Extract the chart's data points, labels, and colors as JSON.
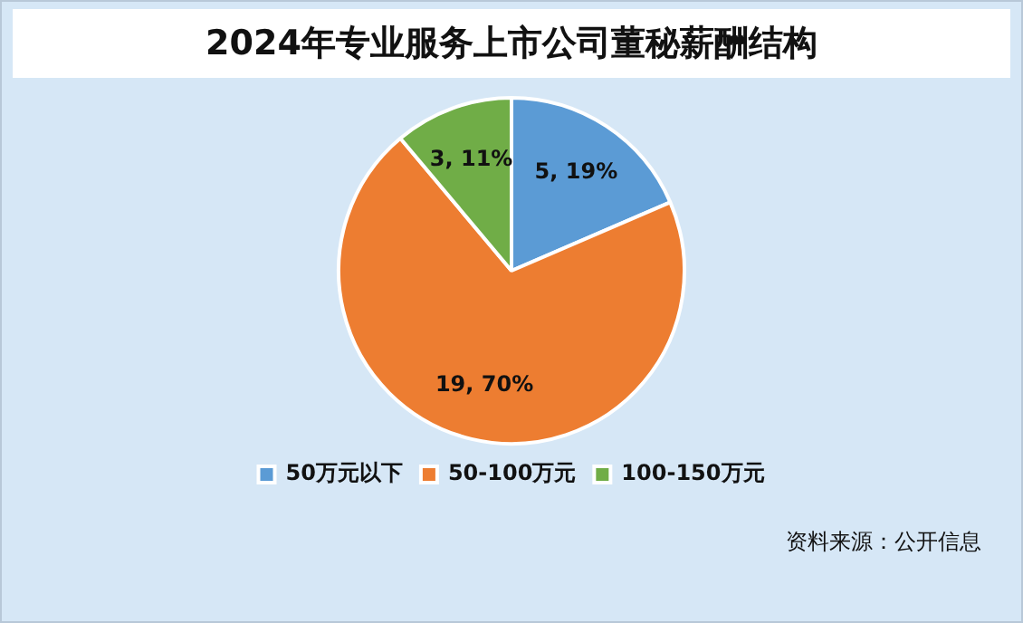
{
  "chart_data": {
    "type": "pie",
    "title": "2024年专业服务上市公司董秘薪酬结构",
    "categories": [
      "50万元以下",
      "50-100万元",
      "100-150万元"
    ],
    "values": [
      5,
      19,
      3
    ],
    "colors": [
      "#5b9bd5",
      "#ed7d31",
      "#70ad47"
    ],
    "value_labels": [
      "5, 19%",
      "19, 70%",
      "3, 11%"
    ],
    "legend": "bottom",
    "annotations": [
      "资料来源：公开信息"
    ]
  }
}
